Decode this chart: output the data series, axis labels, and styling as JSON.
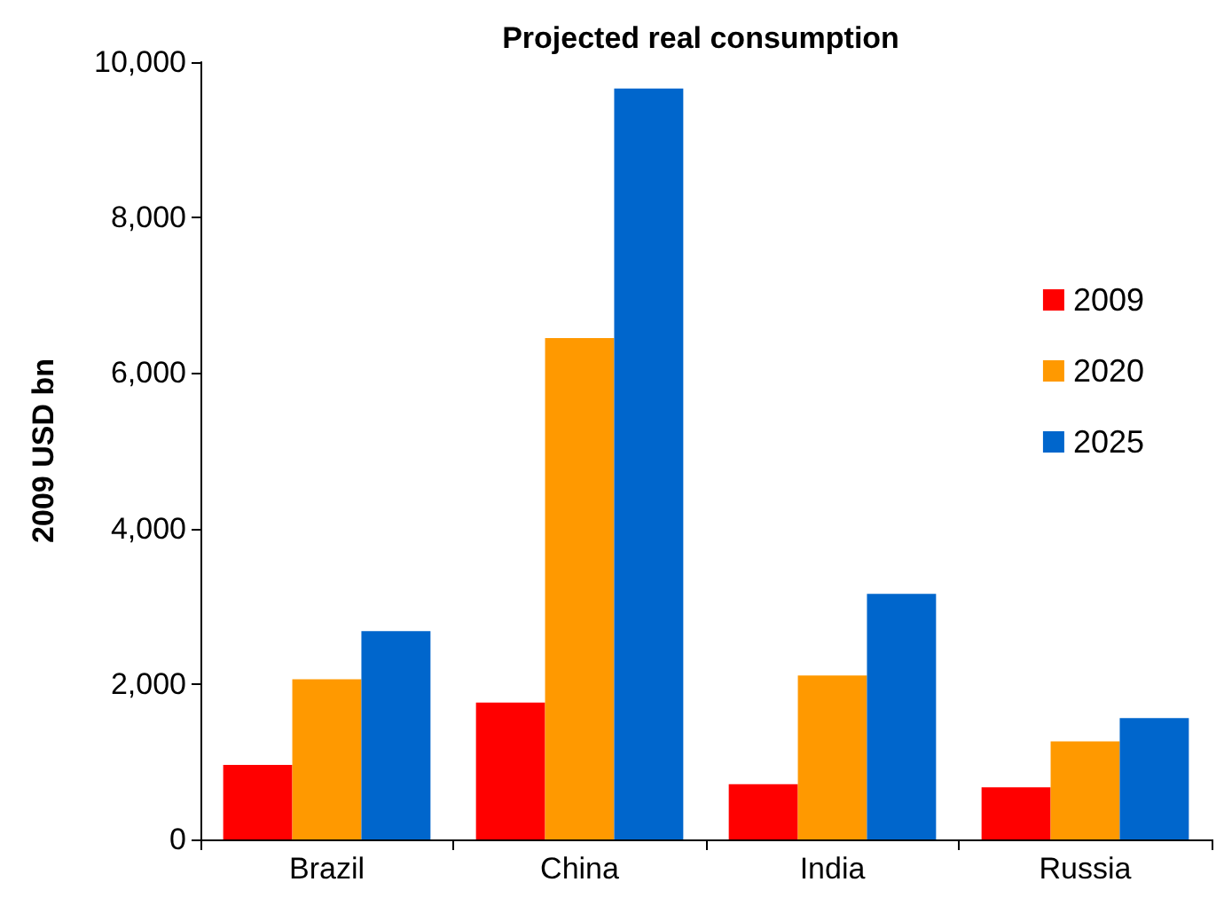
{
  "chart_data": {
    "type": "bar",
    "title": "Projected real consumption",
    "ylabel": "2009 USD bn",
    "categories": [
      "Brazil",
      "China",
      "India",
      "Russia"
    ],
    "series": [
      {
        "name": "2009",
        "color": "#ff0000",
        "values": [
          960,
          1760,
          710,
          670
        ]
      },
      {
        "name": "2020",
        "color": "#ff9900",
        "values": [
          2060,
          6450,
          2110,
          1260
        ]
      },
      {
        "name": "2025",
        "color": "#0066cc",
        "values": [
          2680,
          9660,
          3160,
          1560
        ]
      }
    ],
    "ylim": [
      0,
      10000
    ],
    "yticks": [
      0,
      {
        "value": 2000,
        "label": "2,000"
      },
      {
        "value": 4000,
        "label": "4,000"
      },
      {
        "value": 6000,
        "label": "6,000"
      },
      {
        "value": 8000,
        "label": "8,000"
      },
      {
        "value": 10000,
        "label": "10,000"
      }
    ],
    "grid": false,
    "legend": "right"
  }
}
